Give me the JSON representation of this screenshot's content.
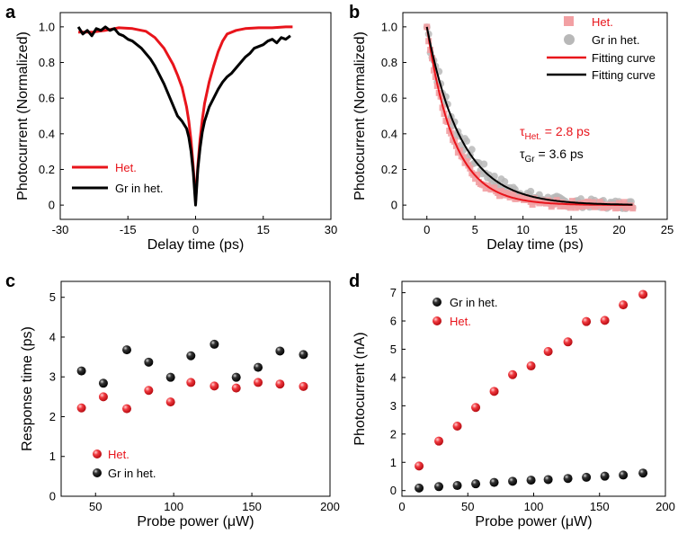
{
  "colors": {
    "red": "#e8141b",
    "black": "#000000",
    "pink": "#f2a0a3",
    "gray": "#b8b8b8"
  },
  "chart_data": [
    {
      "panel": "a",
      "type": "line",
      "xlabel": "Delay time (ps)",
      "ylabel": "Photocurrent (Normalized)",
      "xlim": [
        -30,
        30
      ],
      "ylim": [
        -0.08,
        1.08
      ],
      "xticks": [
        -30,
        -15,
        0,
        15,
        30
      ],
      "yticks": [
        0,
        0.2,
        0.4,
        0.6,
        0.8,
        1.0
      ],
      "ytick_labels": [
        "0",
        "0.2",
        "0.4",
        "0.6",
        "0.8",
        "1.0"
      ],
      "legend_position": "bottom-left",
      "series": [
        {
          "name": "Het.",
          "color": "#e8141b",
          "x": [
            -26,
            -23,
            -20,
            -17,
            -14,
            -11,
            -9,
            -7,
            -5,
            -4,
            -3,
            -2,
            -1.5,
            -1,
            -0.5,
            0,
            0.5,
            1,
            1.5,
            2,
            3,
            4,
            5,
            6,
            7,
            9,
            11,
            14,
            17,
            20,
            21.5
          ],
          "y": [
            0.97,
            0.97,
            0.98,
            0.995,
            0.99,
            0.975,
            0.94,
            0.88,
            0.79,
            0.73,
            0.66,
            0.55,
            0.47,
            0.36,
            0.21,
            0.02,
            0.22,
            0.37,
            0.48,
            0.57,
            0.69,
            0.78,
            0.86,
            0.92,
            0.96,
            0.98,
            0.99,
            0.995,
            0.995,
            1.0,
            1.0
          ]
        },
        {
          "name": "Gr in het.",
          "color": "#000000",
          "x": [
            -26,
            -25,
            -24,
            -23,
            -22,
            -21,
            -20,
            -19,
            -18,
            -17,
            -16,
            -15,
            -14,
            -13,
            -12,
            -11,
            -10,
            -9,
            -8,
            -7,
            -6,
            -5,
            -4,
            -3,
            -2,
            -1.5,
            -1,
            -0.5,
            0,
            0.5,
            1,
            1.5,
            2,
            3,
            4,
            5,
            6,
            7,
            8,
            9,
            10,
            11,
            12,
            13,
            14,
            15,
            16,
            17,
            18,
            19,
            20,
            21
          ],
          "y": [
            1.0,
            0.96,
            0.98,
            0.95,
            0.99,
            0.98,
            1.0,
            0.98,
            0.99,
            0.96,
            0.95,
            0.93,
            0.92,
            0.9,
            0.88,
            0.85,
            0.82,
            0.78,
            0.73,
            0.68,
            0.62,
            0.56,
            0.5,
            0.47,
            0.43,
            0.38,
            0.3,
            0.18,
            0.0,
            0.2,
            0.32,
            0.41,
            0.47,
            0.55,
            0.6,
            0.65,
            0.69,
            0.72,
            0.74,
            0.77,
            0.8,
            0.83,
            0.85,
            0.88,
            0.89,
            0.9,
            0.92,
            0.93,
            0.91,
            0.94,
            0.93,
            0.95
          ]
        }
      ]
    },
    {
      "panel": "b",
      "type": "scatter",
      "xlabel": "Delay time (ps)",
      "ylabel": "Photocurrent (Normalized)",
      "xlim": [
        -2.5,
        25
      ],
      "ylim": [
        -0.08,
        1.08
      ],
      "xticks": [
        0,
        5,
        10,
        15,
        20,
        25
      ],
      "yticks": [
        0,
        0.2,
        0.4,
        0.6,
        0.8,
        1.0
      ],
      "ytick_labels": [
        "0",
        "0.2",
        "0.4",
        "0.6",
        "0.8",
        "1.0"
      ],
      "legend_position": "top-right",
      "series": [
        {
          "name": "Het.",
          "marker": "square",
          "color": "#f2a0a3",
          "tau": 2.8,
          "x_start": 0,
          "x_end": 21.5,
          "step": 0.18,
          "noise": 0.02
        },
        {
          "name": "Gr in het.",
          "marker": "circle",
          "color": "#b8b8b8",
          "tau": 3.6,
          "x_start": 0,
          "x_end": 21.5,
          "step": 0.18,
          "noise": 0.045
        },
        {
          "name": "Fitting curve",
          "marker": "line",
          "color": "#e8141b",
          "tau": 2.8
        },
        {
          "name": "Fitting curve",
          "marker": "line",
          "color": "#000000",
          "tau": 3.6
        }
      ],
      "annotations": [
        {
          "symbol": "τ",
          "sub": "Het.",
          "value": " = 2.8 ps",
          "color": "#e8141b"
        },
        {
          "symbol": "τ",
          "sub": "Gr",
          "value": " = 3.6 ps",
          "color": "#000000"
        }
      ]
    },
    {
      "panel": "c",
      "type": "scatter",
      "xlabel": "Probe power (μW)",
      "ylabel": "Response time (ps)",
      "xlim": [
        28,
        200
      ],
      "ylim": [
        0,
        5.4
      ],
      "xticks": [
        50,
        100,
        150,
        200
      ],
      "yticks": [
        0,
        1,
        2,
        3,
        4,
        5
      ],
      "legend_position": "bottom-left",
      "series": [
        {
          "name": "Het.",
          "color": "#e8141b",
          "x": [
            41,
            55,
            70,
            84,
            98,
            111,
            126,
            140,
            154,
            168,
            183
          ],
          "y": [
            2.22,
            2.5,
            2.2,
            2.66,
            2.37,
            2.86,
            2.77,
            2.72,
            2.86,
            2.82,
            2.76
          ]
        },
        {
          "name": "Gr in het.",
          "color": "#000000",
          "x": [
            41,
            55,
            70,
            84,
            98,
            111,
            126,
            140,
            154,
            168,
            183
          ],
          "y": [
            3.15,
            2.84,
            3.68,
            3.37,
            2.99,
            3.53,
            3.82,
            2.99,
            3.24,
            3.65,
            3.56
          ]
        }
      ]
    },
    {
      "panel": "d",
      "type": "scatter",
      "xlabel": "Probe power (μW)",
      "ylabel": "Photocurrent (nA)",
      "xlim": [
        0,
        200
      ],
      "ylim": [
        -0.2,
        7.4
      ],
      "xticks": [
        0,
        50,
        100,
        150,
        200
      ],
      "yticks": [
        0,
        1,
        2,
        3,
        4,
        5,
        6,
        7
      ],
      "legend_position": "top-left",
      "series": [
        {
          "name": "Gr in het.",
          "color": "#000000",
          "x": [
            13,
            28,
            42,
            56,
            70,
            84,
            98,
            111,
            126,
            140,
            154,
            168,
            183
          ],
          "y": [
            0.09,
            0.14,
            0.18,
            0.24,
            0.29,
            0.33,
            0.37,
            0.39,
            0.43,
            0.47,
            0.51,
            0.55,
            0.62
          ]
        },
        {
          "name": "Het.",
          "color": "#e8141b",
          "x": [
            13,
            28,
            42,
            56,
            70,
            84,
            98,
            111,
            126,
            140,
            154,
            168,
            183
          ],
          "y": [
            0.87,
            1.75,
            2.28,
            2.94,
            3.51,
            4.1,
            4.41,
            4.92,
            5.26,
            5.98,
            6.02,
            6.57,
            6.94
          ]
        }
      ]
    }
  ]
}
